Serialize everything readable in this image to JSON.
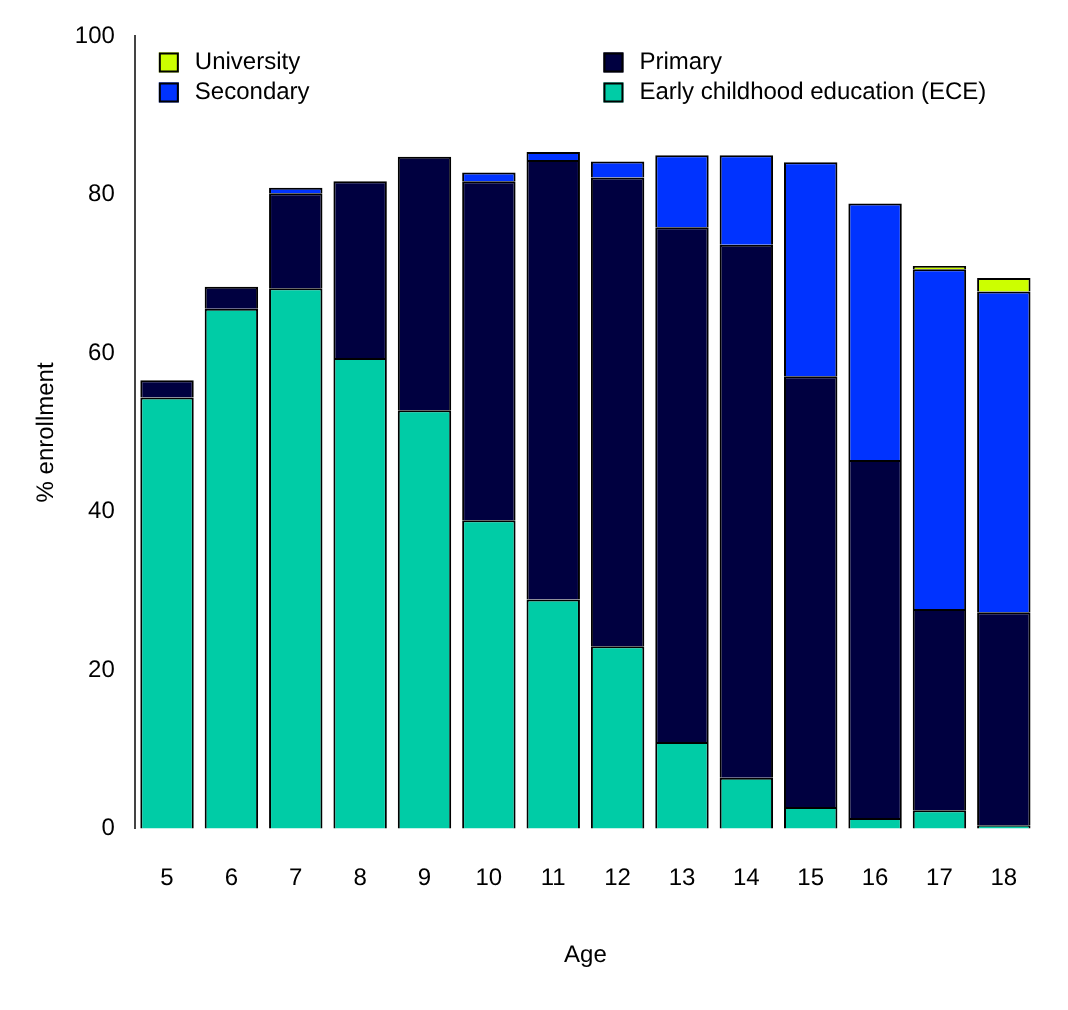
{
  "chart_data": {
    "type": "bar",
    "stacked": true,
    "xlabel": "Age",
    "ylabel": "% enrollment",
    "categories": [
      "5",
      "6",
      "7",
      "8",
      "9",
      "10",
      "11",
      "12",
      "13",
      "14",
      "15",
      "16",
      "17",
      "18"
    ],
    "ylim": [
      0,
      100
    ],
    "yticks": [
      0,
      20,
      40,
      60,
      80,
      100
    ],
    "grid": false,
    "legend": "top",
    "series": [
      {
        "name": "Early childhood education (ECE)",
        "color": "#00cca6",
        "values": [
          54.4,
          65.6,
          68.2,
          59.4,
          52.8,
          38.9,
          28.9,
          23.0,
          10.9,
          6.4,
          2.7,
          1.3,
          2.3,
          0.4
        ]
      },
      {
        "name": "Primary",
        "color": "#000040",
        "values": [
          2.2,
          2.8,
          12.0,
          22.3,
          32.0,
          42.8,
          55.5,
          59.2,
          65.0,
          67.3,
          54.4,
          45.2,
          25.4,
          26.9
        ]
      },
      {
        "name": "Secondary",
        "color": "#0033ff",
        "values": [
          0,
          0,
          0.7,
          0,
          0,
          1.1,
          1.0,
          2.0,
          9.1,
          11.3,
          27.0,
          32.4,
          42.9,
          40.5
        ]
      },
      {
        "name": "University",
        "color": "#ccff00",
        "values": [
          0,
          0,
          0,
          0,
          0,
          0,
          0,
          0,
          0,
          0,
          0,
          0,
          0.4,
          1.7
        ]
      }
    ]
  }
}
